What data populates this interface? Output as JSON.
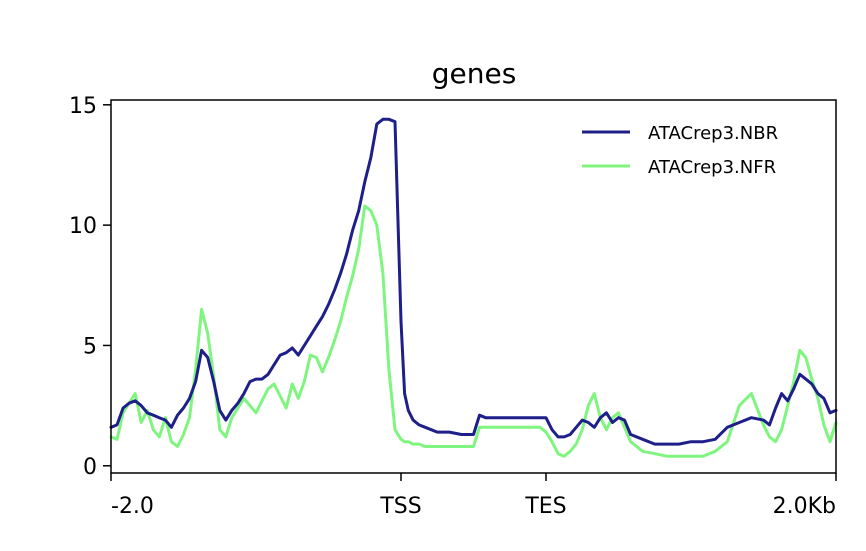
{
  "chart_data": {
    "type": "line",
    "title": "genes",
    "xlabel": "",
    "ylabel": "",
    "xlim": [
      0,
      600
    ],
    "ylim": [
      -0.3,
      15.2
    ],
    "x_ticks": [
      {
        "value": 0,
        "label": "-2.0"
      },
      {
        "value": 240,
        "label": "TSS"
      },
      {
        "value": 360,
        "label": "TES"
      },
      {
        "value": 600,
        "label": "2.0Kb"
      }
    ],
    "y_ticks": [
      {
        "value": 0,
        "label": "0"
      },
      {
        "value": 5,
        "label": "5"
      },
      {
        "value": 10,
        "label": "10"
      },
      {
        "value": 15,
        "label": "15"
      }
    ],
    "legend_position": "top-right",
    "series": [
      {
        "name": "ATACrep3.NBR",
        "color": "#1f1f8a",
        "x": [
          0,
          5,
          10,
          15,
          20,
          25,
          30,
          35,
          40,
          45,
          50,
          55,
          60,
          65,
          70,
          75,
          80,
          85,
          90,
          95,
          100,
          105,
          110,
          115,
          120,
          125,
          130,
          135,
          140,
          145,
          150,
          155,
          160,
          165,
          170,
          175,
          180,
          185,
          190,
          195,
          200,
          205,
          210,
          215,
          220,
          225,
          230,
          235,
          240,
          243,
          246,
          250,
          255,
          260,
          265,
          270,
          280,
          290,
          300,
          305,
          310,
          320,
          330,
          340,
          350,
          355,
          360,
          365,
          370,
          375,
          380,
          385,
          390,
          395,
          400,
          405,
          410,
          415,
          420,
          425,
          430,
          440,
          450,
          460,
          470,
          480,
          490,
          500,
          510,
          520,
          530,
          540,
          545,
          550,
          555,
          560,
          565,
          570,
          575,
          580,
          585,
          590,
          595,
          600
        ],
        "y": [
          1.6,
          1.7,
          2.4,
          2.6,
          2.7,
          2.5,
          2.2,
          2.1,
          2.0,
          1.9,
          1.6,
          2.1,
          2.4,
          2.8,
          3.5,
          4.8,
          4.5,
          3.5,
          2.3,
          1.9,
          2.3,
          2.6,
          3.0,
          3.5,
          3.6,
          3.6,
          3.8,
          4.2,
          4.6,
          4.7,
          4.9,
          4.6,
          5.0,
          5.4,
          5.8,
          6.2,
          6.7,
          7.3,
          8.0,
          8.8,
          9.8,
          10.6,
          11.8,
          12.8,
          14.2,
          14.4,
          14.4,
          14.3,
          6.0,
          3.0,
          2.3,
          1.9,
          1.7,
          1.6,
          1.5,
          1.4,
          1.4,
          1.3,
          1.3,
          2.1,
          2.0,
          2.0,
          2.0,
          2.0,
          2.0,
          2.0,
          2.0,
          1.5,
          1.2,
          1.2,
          1.3,
          1.6,
          1.9,
          1.8,
          1.6,
          2.0,
          2.2,
          1.8,
          2.0,
          1.9,
          1.3,
          1.1,
          0.9,
          0.9,
          0.9,
          1.0,
          1.0,
          1.1,
          1.6,
          1.8,
          2.0,
          1.9,
          1.7,
          2.4,
          3.0,
          2.7,
          3.2,
          3.8,
          3.6,
          3.4,
          3.0,
          2.8,
          2.2,
          2.3
        ]
      },
      {
        "name": "ATACrep3.NFR",
        "color": "#7ff57f",
        "x": [
          0,
          5,
          10,
          15,
          20,
          25,
          30,
          35,
          40,
          45,
          50,
          55,
          60,
          65,
          70,
          75,
          80,
          85,
          90,
          95,
          100,
          105,
          110,
          115,
          120,
          125,
          130,
          135,
          140,
          145,
          150,
          155,
          160,
          165,
          170,
          175,
          180,
          185,
          190,
          195,
          200,
          205,
          210,
          215,
          220,
          225,
          230,
          235,
          240,
          243,
          246,
          250,
          255,
          260,
          265,
          270,
          280,
          290,
          300,
          305,
          310,
          320,
          330,
          340,
          350,
          355,
          360,
          365,
          370,
          375,
          380,
          385,
          390,
          395,
          400,
          405,
          410,
          415,
          420,
          425,
          430,
          440,
          450,
          460,
          470,
          480,
          490,
          500,
          510,
          520,
          530,
          540,
          545,
          550,
          555,
          560,
          565,
          570,
          575,
          580,
          585,
          590,
          595,
          600
        ],
        "y": [
          1.2,
          1.1,
          2.2,
          2.6,
          3.0,
          1.8,
          2.3,
          1.5,
          1.2,
          2.0,
          1.0,
          0.8,
          1.3,
          2.0,
          4.0,
          6.5,
          5.5,
          3.7,
          1.5,
          1.2,
          2.0,
          2.4,
          2.8,
          2.5,
          2.2,
          2.7,
          3.2,
          3.4,
          2.9,
          2.4,
          3.4,
          2.8,
          3.5,
          4.6,
          4.5,
          3.9,
          4.5,
          5.2,
          6.0,
          7.0,
          7.9,
          9.0,
          10.8,
          10.6,
          10.0,
          8.0,
          4.0,
          1.5,
          1.1,
          1.0,
          1.0,
          0.9,
          0.9,
          0.8,
          0.8,
          0.8,
          0.8,
          0.8,
          0.8,
          1.6,
          1.6,
          1.6,
          1.6,
          1.6,
          1.6,
          1.6,
          1.4,
          1.0,
          0.5,
          0.4,
          0.6,
          0.9,
          1.5,
          2.5,
          3.0,
          2.0,
          1.5,
          2.0,
          2.2,
          1.6,
          1.0,
          0.6,
          0.5,
          0.4,
          0.4,
          0.4,
          0.4,
          0.6,
          1.0,
          2.5,
          3.0,
          1.7,
          1.2,
          1.0,
          1.5,
          2.5,
          3.5,
          4.8,
          4.5,
          3.6,
          2.8,
          1.7,
          1.0,
          1.8
        ]
      }
    ]
  }
}
